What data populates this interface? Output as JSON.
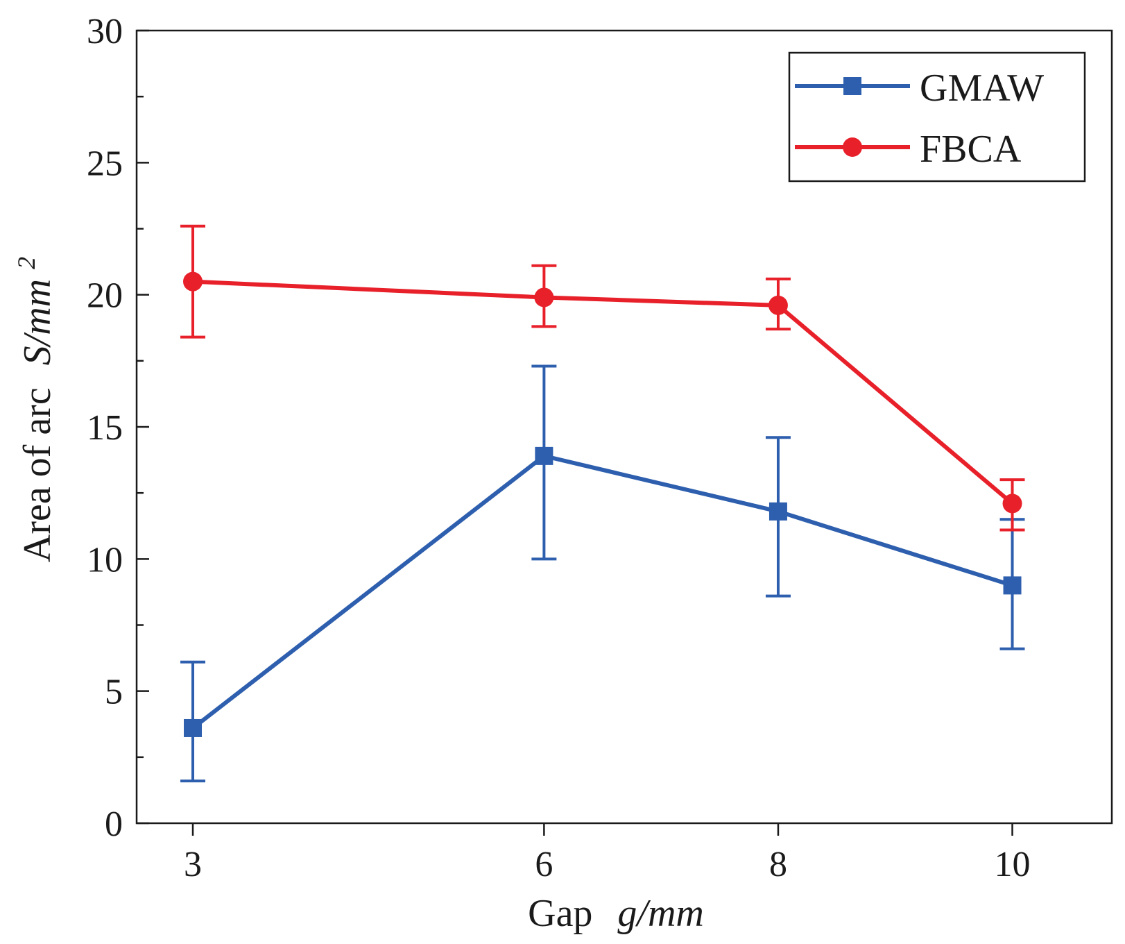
{
  "chart_data": {
    "type": "line",
    "x": [
      3,
      6,
      8,
      10
    ],
    "x_tick_labels": [
      "3",
      "6",
      "8",
      "10"
    ],
    "xlabel": {
      "main": "Gap",
      "symbol": "g/mm"
    },
    "ylabel": {
      "main": "Area of arc",
      "symbol": "S/mm",
      "superscript": "2"
    },
    "ylim": [
      0,
      30
    ],
    "y_ticks": [
      0,
      5,
      10,
      15,
      20,
      25,
      30
    ],
    "y_tick_labels": [
      "0",
      "5",
      "10",
      "15",
      "20",
      "25",
      "30"
    ],
    "legend_position": "top-right",
    "series": [
      {
        "name": "GMAW",
        "color": "#2e5fae",
        "marker": "square",
        "values": [
          3.6,
          13.9,
          11.8,
          9.0
        ],
        "err_low": [
          1.6,
          10.0,
          8.6,
          6.6
        ],
        "err_high": [
          6.1,
          17.3,
          14.6,
          11.5
        ]
      },
      {
        "name": "FBCA",
        "color": "#e8202a",
        "marker": "circle",
        "values": [
          20.5,
          19.9,
          19.6,
          12.1
        ],
        "err_low": [
          18.4,
          18.8,
          18.7,
          11.1
        ],
        "err_high": [
          22.6,
          21.1,
          20.6,
          13.0
        ]
      }
    ]
  }
}
